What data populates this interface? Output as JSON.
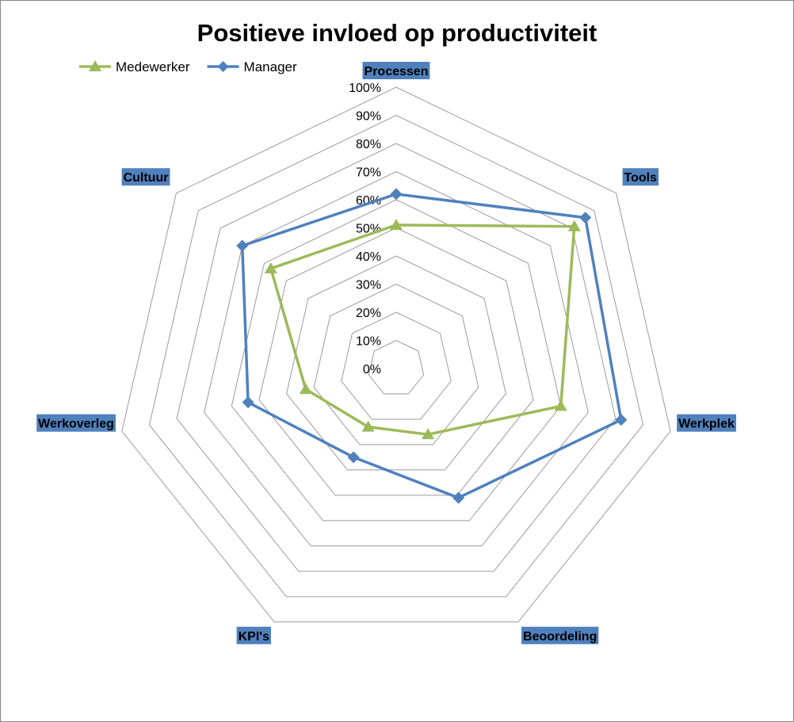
{
  "chart_data": {
    "type": "radar",
    "title": "Positieve invloed op productiviteit",
    "categories": [
      "Processen",
      "Tools",
      "Werkplek",
      "Beoordeling",
      "KPI's",
      "Werkoverleg",
      "Cultuur"
    ],
    "series": [
      {
        "name": "Medewerker",
        "values": [
          0.51,
          0.81,
          0.6,
          0.26,
          0.23,
          0.33,
          0.57
        ],
        "color": "#9BBB59",
        "marker": "triangle"
      },
      {
        "name": "Manager",
        "values": [
          0.62,
          0.86,
          0.82,
          0.51,
          0.35,
          0.54,
          0.7
        ],
        "color": "#4F81BD",
        "marker": "diamond"
      }
    ],
    "axis": {
      "min": 0,
      "max": 1,
      "ticks": [
        "0%",
        "10%",
        "20%",
        "30%",
        "40%",
        "50%",
        "60%",
        "70%",
        "80%",
        "90%",
        "100%"
      ]
    },
    "legend_position": "top-left",
    "category_label_background": "#4F81BD",
    "grid_color": "#9A9A9A"
  }
}
